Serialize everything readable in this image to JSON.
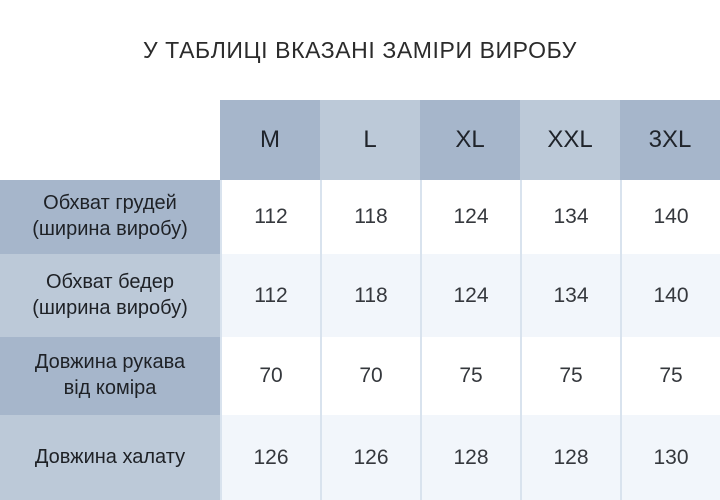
{
  "title": "У ТАБЛИЦІ ВКАЗАНІ ЗАМІРИ ВИРОБУ",
  "chart_data": {
    "type": "table",
    "title": "У ТАБЛИЦІ ВКАЗАНІ ЗАМІРИ ВИРОБУ",
    "columns": [
      "M",
      "L",
      "XL",
      "XXL",
      "3XL"
    ],
    "rows": [
      {
        "label": "Обхват грудей (ширина виробу)",
        "label_lines": [
          "Обхват грудей",
          "(ширина виробу)"
        ],
        "values": [
          112,
          118,
          124,
          134,
          140
        ]
      },
      {
        "label": "Обхват бедер (ширина виробу)",
        "label_lines": [
          "Обхват бедер",
          "(ширина виробу)"
        ],
        "values": [
          112,
          118,
          124,
          134,
          140
        ]
      },
      {
        "label": "Довжина рукава від коміра",
        "label_lines": [
          "Довжина рукава",
          "від коміра"
        ],
        "values": [
          70,
          70,
          75,
          75,
          75
        ]
      },
      {
        "label": "Довжина халату",
        "label_lines": [
          "Довжина халату"
        ],
        "values": [
          126,
          126,
          128,
          128,
          130
        ]
      }
    ]
  },
  "colors": {
    "header-dark": "#a6b6cb",
    "header-light": "#bcc9d8",
    "row-tint": "#f2f6fb",
    "grid-line": "#d9e3ee"
  }
}
